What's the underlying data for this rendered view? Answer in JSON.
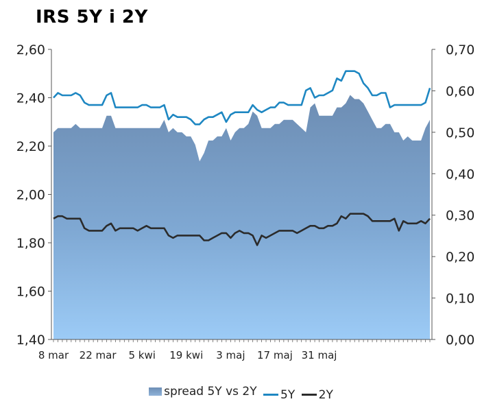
{
  "chart_data": {
    "type": "area",
    "title": "IRS 5Y i 2Y",
    "xlabel": "",
    "ylabel": "",
    "x_tick_labels": [
      "8 mar",
      "22 mar",
      "5 kwi",
      "19 kwi",
      "3 maj",
      "17 maj",
      "31 maj"
    ],
    "y_left": {
      "lim": [
        1.4,
        2.6
      ],
      "ticks": [
        "1,40",
        "1,60",
        "1,80",
        "2,00",
        "2,20",
        "2,40",
        "2,60"
      ]
    },
    "y_right": {
      "lim": [
        0.0,
        0.7
      ],
      "ticks": [
        "0,00",
        "0,10",
        "0,20",
        "0,30",
        "0,40",
        "0,50",
        "0,60",
        "0,70"
      ]
    },
    "grid": false,
    "legend_position": "bottom",
    "series": [
      {
        "name": "spread 5Y vs 2Y",
        "axis": "right",
        "kind": "area",
        "color": "#7ea3cb",
        "values": [
          0.5,
          0.51,
          0.51,
          0.51,
          0.51,
          0.52,
          0.51,
          0.51,
          0.51,
          0.51,
          0.51,
          0.51,
          0.54,
          0.54,
          0.51,
          0.51,
          0.51,
          0.51,
          0.51,
          0.51,
          0.51,
          0.51,
          0.51,
          0.51,
          0.51,
          0.53,
          0.5,
          0.51,
          0.5,
          0.5,
          0.49,
          0.49,
          0.47,
          0.43,
          0.45,
          0.48,
          0.48,
          0.49,
          0.49,
          0.51,
          0.48,
          0.5,
          0.51,
          0.51,
          0.52,
          0.55,
          0.54,
          0.51,
          0.51,
          0.51,
          0.52,
          0.52,
          0.53,
          0.53,
          0.53,
          0.52,
          0.51,
          0.5,
          0.56,
          0.57,
          0.54,
          0.54,
          0.54,
          0.54,
          0.56,
          0.56,
          0.57,
          0.59,
          0.58,
          0.58,
          0.57,
          0.55,
          0.53,
          0.51,
          0.51,
          0.52,
          0.52,
          0.5,
          0.5,
          0.48,
          0.49,
          0.48,
          0.48,
          0.48,
          0.51,
          0.53
        ]
      },
      {
        "name": "5Y",
        "axis": "left",
        "kind": "line",
        "color": "#1e87c2",
        "values": [
          2.4,
          2.42,
          2.41,
          2.41,
          2.41,
          2.42,
          2.41,
          2.38,
          2.37,
          2.37,
          2.37,
          2.37,
          2.41,
          2.42,
          2.36,
          2.36,
          2.36,
          2.36,
          2.36,
          2.36,
          2.37,
          2.37,
          2.36,
          2.36,
          2.36,
          2.37,
          2.31,
          2.33,
          2.32,
          2.32,
          2.32,
          2.31,
          2.29,
          2.29,
          2.31,
          2.32,
          2.32,
          2.33,
          2.34,
          2.3,
          2.33,
          2.34,
          2.34,
          2.34,
          2.34,
          2.37,
          2.35,
          2.34,
          2.35,
          2.36,
          2.36,
          2.38,
          2.38,
          2.37,
          2.37,
          2.37,
          2.37,
          2.43,
          2.44,
          2.4,
          2.41,
          2.41,
          2.42,
          2.43,
          2.48,
          2.47,
          2.51,
          2.51,
          2.51,
          2.5,
          2.46,
          2.44,
          2.41,
          2.41,
          2.42,
          2.42,
          2.36,
          2.37,
          2.37,
          2.37,
          2.37,
          2.37,
          2.37,
          2.37,
          2.38,
          2.44
        ]
      },
      {
        "name": "2Y",
        "axis": "left",
        "kind": "line",
        "color": "#2b2b2b",
        "values": [
          1.9,
          1.91,
          1.91,
          1.9,
          1.9,
          1.9,
          1.9,
          1.86,
          1.85,
          1.85,
          1.85,
          1.85,
          1.87,
          1.88,
          1.85,
          1.86,
          1.86,
          1.86,
          1.86,
          1.85,
          1.86,
          1.87,
          1.86,
          1.86,
          1.86,
          1.86,
          1.83,
          1.82,
          1.83,
          1.83,
          1.83,
          1.83,
          1.83,
          1.83,
          1.81,
          1.81,
          1.82,
          1.83,
          1.84,
          1.84,
          1.82,
          1.84,
          1.85,
          1.84,
          1.84,
          1.83,
          1.79,
          1.83,
          1.82,
          1.83,
          1.84,
          1.85,
          1.85,
          1.85,
          1.85,
          1.84,
          1.85,
          1.86,
          1.87,
          1.87,
          1.86,
          1.86,
          1.87,
          1.87,
          1.88,
          1.91,
          1.9,
          1.92,
          1.92,
          1.92,
          1.92,
          1.91,
          1.89,
          1.89,
          1.89,
          1.89,
          1.89,
          1.9,
          1.85,
          1.89,
          1.88,
          1.88,
          1.88,
          1.89,
          1.88,
          1.9
        ]
      }
    ]
  }
}
